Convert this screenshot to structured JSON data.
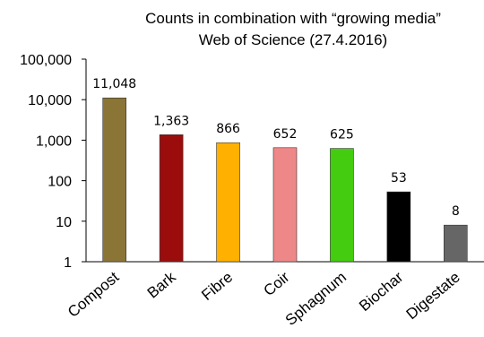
{
  "chart_data": {
    "type": "bar",
    "title": "Counts in combination with “growing media”",
    "subtitle": "Web of Science (27.4.2016)",
    "categories": [
      "Compost",
      "Bark",
      "Fibre",
      "Coir",
      "Sphagnum",
      "Biochar",
      "Digestate"
    ],
    "values": [
      11048,
      1363,
      866,
      652,
      625,
      53,
      8
    ],
    "data_labels": [
      "11,048",
      "1,363",
      "866",
      "652",
      "625",
      "53",
      "8"
    ],
    "colors": [
      "#8B7536",
      "#9B0D0D",
      "#FFB000",
      "#EE8888",
      "#44CC11",
      "#000000",
      "#666666"
    ],
    "y_scale": "log",
    "ylim": [
      1,
      100000
    ],
    "y_ticks": [
      1,
      10,
      100,
      1000,
      10000,
      100000
    ],
    "y_tick_labels": [
      "1",
      "10",
      "100",
      "1,000",
      "10,000",
      "100,000"
    ],
    "grid": false,
    "legend": "none",
    "xlabel": "",
    "ylabel": ""
  }
}
